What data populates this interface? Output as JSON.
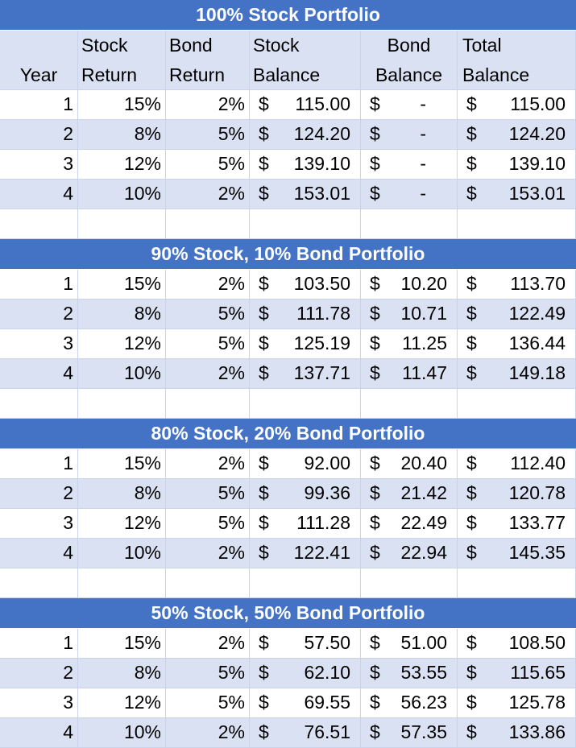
{
  "currency_symbol": "$",
  "header": [
    [
      "Year"
    ],
    [
      "Stock",
      "Return"
    ],
    [
      "Bond",
      "Return"
    ],
    [
      "Stock",
      "Balance"
    ],
    [
      "Bond",
      "Balance"
    ],
    [
      "Total",
      "Balance"
    ]
  ],
  "sections": [
    {
      "title": "100% Stock Portfolio",
      "rows": [
        [
          1,
          "15%",
          "2%",
          "115.00",
          "-",
          "115.00"
        ],
        [
          2,
          "8%",
          "5%",
          "124.20",
          "-",
          "124.20"
        ],
        [
          3,
          "12%",
          "5%",
          "139.10",
          "-",
          "139.10"
        ],
        [
          4,
          "10%",
          "2%",
          "153.01",
          "-",
          "153.01"
        ]
      ]
    },
    {
      "title": "90% Stock, 10% Bond Portfolio",
      "rows": [
        [
          1,
          "15%",
          "2%",
          "103.50",
          "10.20",
          "113.70"
        ],
        [
          2,
          "8%",
          "5%",
          "111.78",
          "10.71",
          "122.49"
        ],
        [
          3,
          "12%",
          "5%",
          "125.19",
          "11.25",
          "136.44"
        ],
        [
          4,
          "10%",
          "2%",
          "137.71",
          "11.47",
          "149.18"
        ]
      ]
    },
    {
      "title": "80% Stock, 20% Bond Portfolio",
      "rows": [
        [
          1,
          "15%",
          "2%",
          "92.00",
          "20.40",
          "112.40"
        ],
        [
          2,
          "8%",
          "5%",
          "99.36",
          "21.42",
          "120.78"
        ],
        [
          3,
          "12%",
          "5%",
          "111.28",
          "22.49",
          "133.77"
        ],
        [
          4,
          "10%",
          "2%",
          "122.41",
          "22.94",
          "145.35"
        ]
      ]
    },
    {
      "title": "50% Stock, 50% Bond Portfolio",
      "rows": [
        [
          1,
          "15%",
          "2%",
          "57.50",
          "51.00",
          "108.50"
        ],
        [
          2,
          "8%",
          "5%",
          "62.10",
          "53.55",
          "115.65"
        ],
        [
          3,
          "12%",
          "5%",
          "69.55",
          "56.23",
          "125.78"
        ],
        [
          4,
          "10%",
          "2%",
          "76.51",
          "57.35",
          "133.86"
        ]
      ]
    }
  ]
}
